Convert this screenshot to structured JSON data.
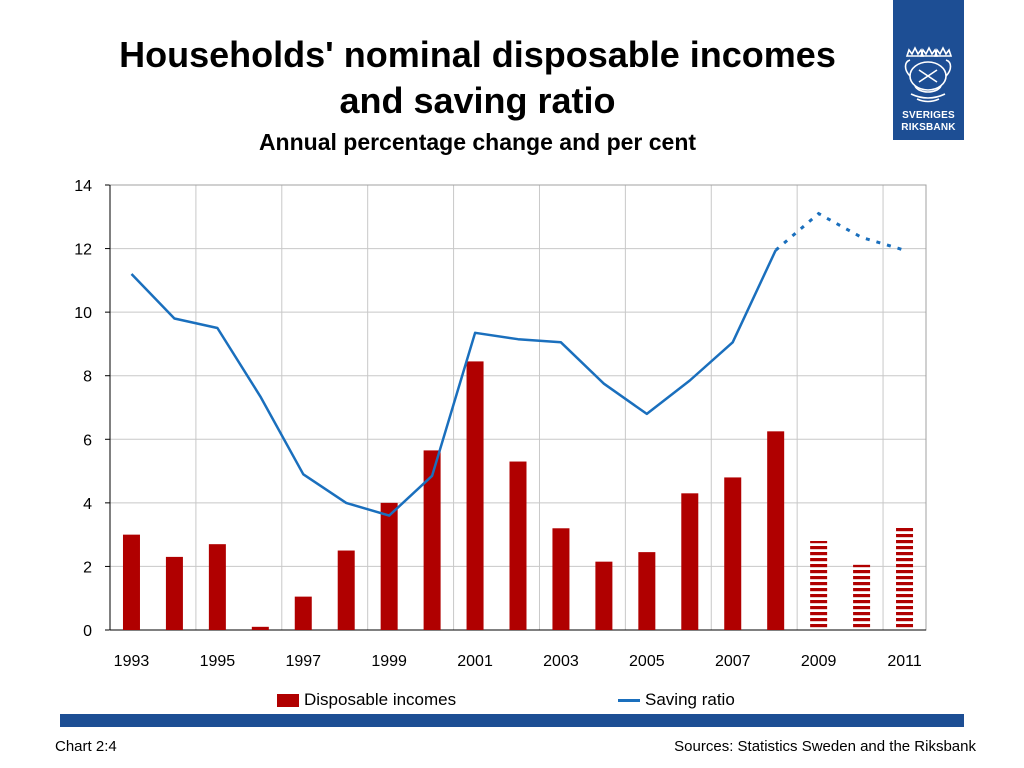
{
  "title": {
    "line1": "Households' nominal disposable incomes",
    "line2": "and saving ratio",
    "subtitle": "Annual percentage change and per cent"
  },
  "logo": {
    "line1": "SVERIGES",
    "line2": "RIKSBANK",
    "icon": "riksbank-crest-icon"
  },
  "chart_data": {
    "type": "bar",
    "title": "Households' nominal disposable incomes and saving ratio",
    "subtitle": "Annual percentage change and per cent",
    "x": [
      1993,
      1994,
      1995,
      1996,
      1997,
      1998,
      1999,
      2000,
      2001,
      2002,
      2003,
      2004,
      2005,
      2006,
      2007,
      2008,
      2009,
      2010,
      2011
    ],
    "x_tick_labels": [
      "1993",
      "1995",
      "1997",
      "1999",
      "2001",
      "2003",
      "2005",
      "2007",
      "2009",
      "2011"
    ],
    "ylim": [
      0,
      14
    ],
    "y_ticks": [
      0,
      2,
      4,
      6,
      8,
      10,
      12,
      14
    ],
    "grid": true,
    "legend_position": "bottom",
    "forecast_from": 2009,
    "series": [
      {
        "name": "Disposable incomes",
        "type": "bar",
        "color": "#b00000",
        "values": [
          3.0,
          2.3,
          2.7,
          0.1,
          1.05,
          2.5,
          4.0,
          5.65,
          8.45,
          5.3,
          3.2,
          2.15,
          2.45,
          4.3,
          4.8,
          6.25,
          2.8,
          2.05,
          3.25
        ]
      },
      {
        "name": "Saving ratio",
        "type": "line",
        "color": "#1a6fbd",
        "values": [
          11.2,
          9.8,
          9.5,
          7.35,
          4.9,
          4.0,
          3.6,
          4.85,
          9.35,
          9.15,
          9.05,
          7.75,
          6.8,
          7.85,
          9.05,
          11.95,
          13.1,
          12.35,
          11.95
        ]
      }
    ]
  },
  "footer": {
    "left": "Chart 2:4",
    "right": "Sources: Statistics Sweden and the Riksbank"
  }
}
